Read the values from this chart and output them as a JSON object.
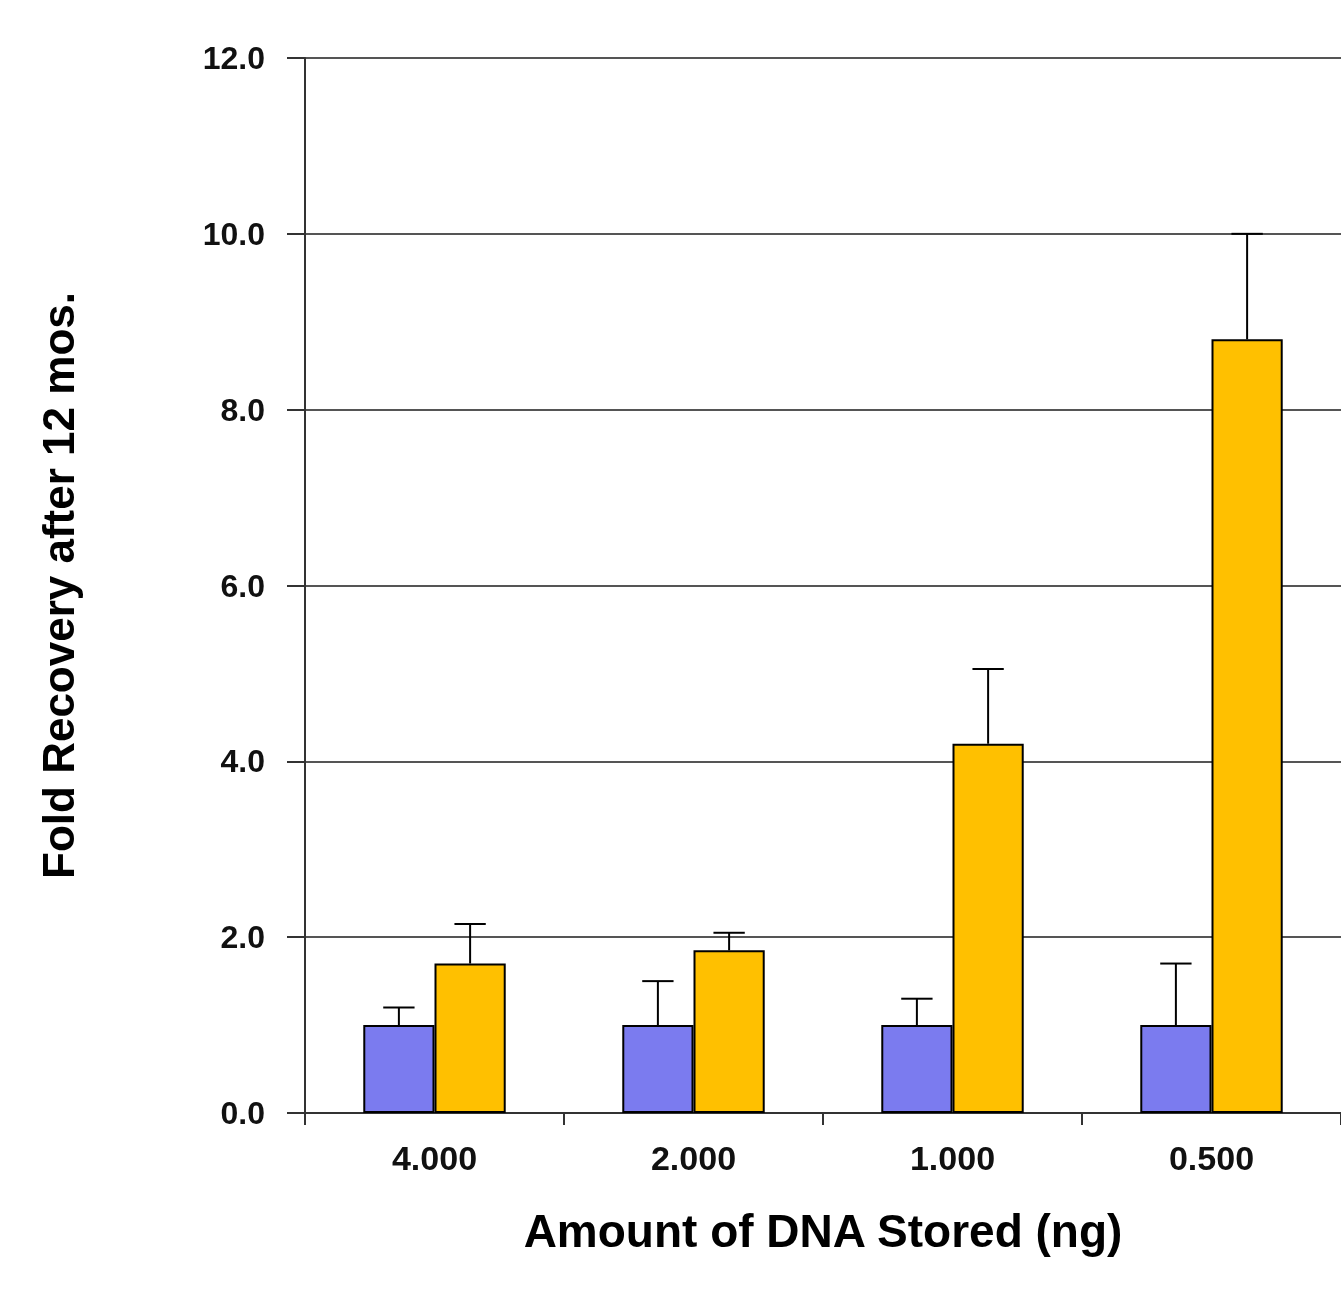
{
  "chart_data": {
    "type": "bar",
    "xlabel": "Amount of DNA Stored (ng)",
    "ylabel": "Fold Recovery after 12 mos.",
    "categories": [
      "4.000",
      "2.000",
      "1.000",
      "0.500"
    ],
    "series": [
      {
        "color": "#7b7bef",
        "values": [
          1.0,
          1.0,
          1.0,
          1.0
        ],
        "errors": [
          [
            1.0,
            1.2
          ],
          [
            1.0,
            1.5
          ],
          [
            1.0,
            1.3
          ],
          [
            1.0,
            1.7
          ]
        ]
      },
      {
        "color": "#ffc000",
        "values": [
          1.7,
          1.85,
          4.2,
          8.8
        ],
        "errors": [
          [
            1.7,
            2.15
          ],
          [
            1.85,
            2.05
          ],
          [
            4.2,
            5.05
          ],
          [
            8.8,
            10.0
          ]
        ]
      }
    ],
    "ylim": [
      0,
      12
    ],
    "yticks": [
      {
        "value": 0,
        "label": "0.0"
      },
      {
        "value": 2,
        "label": "2.0"
      },
      {
        "value": 4,
        "label": "4.0"
      },
      {
        "value": 6,
        "label": "6.0"
      },
      {
        "value": 8,
        "label": "8.0"
      },
      {
        "value": 10,
        "label": "10.0"
      },
      {
        "value": 12,
        "label": "12.0"
      }
    ],
    "grid": "y"
  }
}
